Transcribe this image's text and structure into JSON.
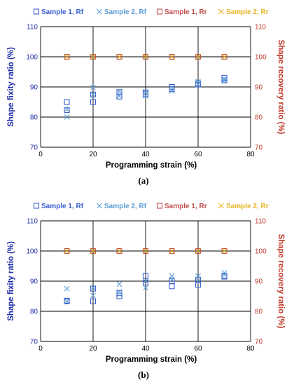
{
  "colors": {
    "sample1_rf": "#3a5fcd",
    "sample2_rf": "#5b9bd5",
    "sample1_rr": "#c0504d",
    "sample2_rr": "#e6b422",
    "left_axis": "#1f2fa8",
    "right_axis": "#c0392b",
    "grid": "#000000"
  },
  "chart_data": [
    {
      "type": "scatter",
      "panel_label": "(a)",
      "xlabel": "Programming strain (%)",
      "ylabel_left": "Shape fixity ratio (%)",
      "ylabel_right": "Shape recovery ratio (%)",
      "xlim": [
        0,
        80
      ],
      "xticks": [
        "0",
        "20",
        "40",
        "60",
        "80"
      ],
      "ylim_left": [
        70,
        110
      ],
      "yticks_left": [
        "70",
        "80",
        "90",
        "100",
        "110"
      ],
      "ylim_right": [
        70,
        110
      ],
      "yticks_right": [
        "70",
        "80",
        "90",
        "100",
        "110"
      ],
      "legend_position": "top",
      "grid": true,
      "series": [
        {
          "name": "Sample 1, Rf",
          "marker": "square",
          "axis": "left",
          "points": [
            [
              10,
              82.3
            ],
            [
              10,
              85
            ],
            [
              20,
              87.5
            ],
            [
              20,
              85
            ],
            [
              30,
              88.3
            ],
            [
              30,
              86.8
            ],
            [
              40,
              87.6
            ],
            [
              40,
              88.2
            ],
            [
              50,
              90
            ],
            [
              50,
              89.3
            ],
            [
              60,
              90.8
            ],
            [
              60,
              91.2
            ],
            [
              70,
              92.2
            ],
            [
              70,
              93
            ]
          ]
        },
        {
          "name": "Sample 2, Rf",
          "marker": "x",
          "axis": "left",
          "points": [
            [
              10,
              80
            ],
            [
              10,
              82.5
            ],
            [
              20,
              89.8
            ],
            [
              20,
              87.5
            ],
            [
              30,
              87
            ],
            [
              30,
              88.5
            ],
            [
              40,
              87
            ],
            [
              40,
              88.2
            ],
            [
              50,
              88.6
            ],
            [
              50,
              89.8
            ],
            [
              60,
              91.8
            ],
            [
              60,
              90.8
            ],
            [
              70,
              92
            ],
            [
              70,
              92.5
            ]
          ]
        },
        {
          "name": "Sample 1, Rr",
          "marker": "square",
          "axis": "right",
          "points": [
            [
              10,
              100
            ],
            [
              20,
              100
            ],
            [
              30,
              100
            ],
            [
              40,
              100
            ],
            [
              50,
              100
            ],
            [
              60,
              100
            ],
            [
              70,
              100
            ]
          ]
        },
        {
          "name": "Sample 2, Rr",
          "marker": "x",
          "axis": "right",
          "points": [
            [
              10,
              100
            ],
            [
              20,
              100
            ],
            [
              30,
              100
            ],
            [
              40,
              100
            ],
            [
              50,
              100
            ],
            [
              60,
              100
            ],
            [
              70,
              100
            ]
          ]
        }
      ]
    },
    {
      "type": "scatter",
      "panel_label": "(b)",
      "xlabel": "Programming strain (%)",
      "ylabel_left": "Shape fixity ratio (%)",
      "ylabel_right": "Shape recovery ratio (%)",
      "xlim": [
        0,
        80
      ],
      "xticks": [
        "0",
        "20",
        "40",
        "60",
        "80"
      ],
      "ylim_left": [
        70,
        110
      ],
      "yticks_left": [
        "70",
        "80",
        "90",
        "100",
        "110"
      ],
      "ylim_right": [
        70,
        110
      ],
      "yticks_right": [
        "70",
        "80",
        "90",
        "100",
        "110"
      ],
      "legend_position": "top",
      "grid": true,
      "series": [
        {
          "name": "Sample 1, Rf",
          "marker": "square",
          "axis": "left",
          "points": [
            [
              10,
              83.3
            ],
            [
              10,
              83.5
            ],
            [
              20,
              87.5
            ],
            [
              20,
              83.3
            ],
            [
              30,
              85
            ],
            [
              30,
              86
            ],
            [
              40,
              91.7
            ],
            [
              40,
              89.5
            ],
            [
              50,
              90
            ],
            [
              50,
              88.3
            ],
            [
              60,
              90.5
            ],
            [
              60,
              88.8
            ],
            [
              70,
              91.7
            ],
            [
              70,
              91.5
            ]
          ]
        },
        {
          "name": "Sample 2, Rf",
          "marker": "x",
          "axis": "left",
          "points": [
            [
              10,
              87.5
            ],
            [
              10,
              83.3
            ],
            [
              20,
              85.2
            ],
            [
              20,
              87.8
            ],
            [
              30,
              89
            ],
            [
              30,
              86.5
            ],
            [
              40,
              87.8
            ],
            [
              40,
              90
            ],
            [
              50,
              91.7
            ],
            [
              50,
              90.5
            ],
            [
              60,
              91.7
            ],
            [
              60,
              90
            ],
            [
              70,
              92.8
            ],
            [
              70,
              92
            ]
          ]
        },
        {
          "name": "Sample 1, Rr",
          "marker": "square",
          "axis": "right",
          "points": [
            [
              10,
              100
            ],
            [
              20,
              100
            ],
            [
              30,
              100
            ],
            [
              40,
              100
            ],
            [
              50,
              100
            ],
            [
              60,
              100
            ],
            [
              70,
              100
            ]
          ]
        },
        {
          "name": "Sample 2, Rr",
          "marker": "x",
          "axis": "right",
          "points": [
            [
              10,
              100
            ],
            [
              20,
              100
            ],
            [
              30,
              100
            ],
            [
              40,
              100
            ],
            [
              50,
              100
            ],
            [
              60,
              100
            ],
            [
              70,
              100
            ]
          ]
        }
      ]
    }
  ]
}
